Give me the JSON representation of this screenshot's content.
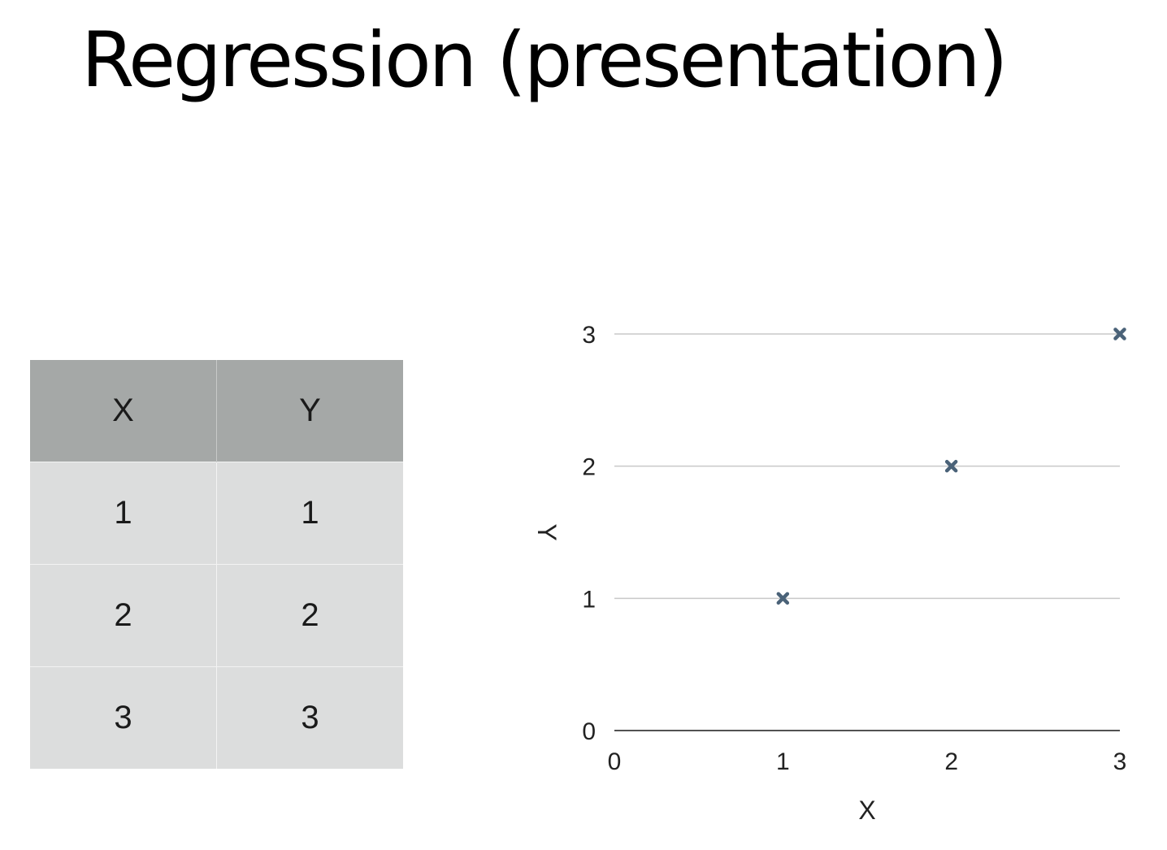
{
  "slide": {
    "title": "Regression (presentation)"
  },
  "table": {
    "headers": [
      "X",
      "Y"
    ],
    "rows": [
      [
        "1",
        "1"
      ],
      [
        "2",
        "2"
      ],
      [
        "3",
        "3"
      ]
    ]
  },
  "chart_data": {
    "type": "scatter",
    "title": "",
    "xlabel": "X",
    "ylabel": "Y",
    "xlim": [
      0,
      3
    ],
    "ylim": [
      0,
      3
    ],
    "xticks": [
      0,
      1,
      2,
      3
    ],
    "yticks": [
      0,
      1,
      2,
      3
    ],
    "grid": "horizontal",
    "series": [
      {
        "x": [
          1,
          2,
          3
        ],
        "y": [
          1,
          2,
          3
        ],
        "marker": "x",
        "color": "#4a6278"
      }
    ]
  },
  "colors": {
    "header_fill": "#a5a8a7",
    "cell_fill": "#dcdddd",
    "gridline": "#c9c9c9",
    "marker": "#4a6278"
  }
}
